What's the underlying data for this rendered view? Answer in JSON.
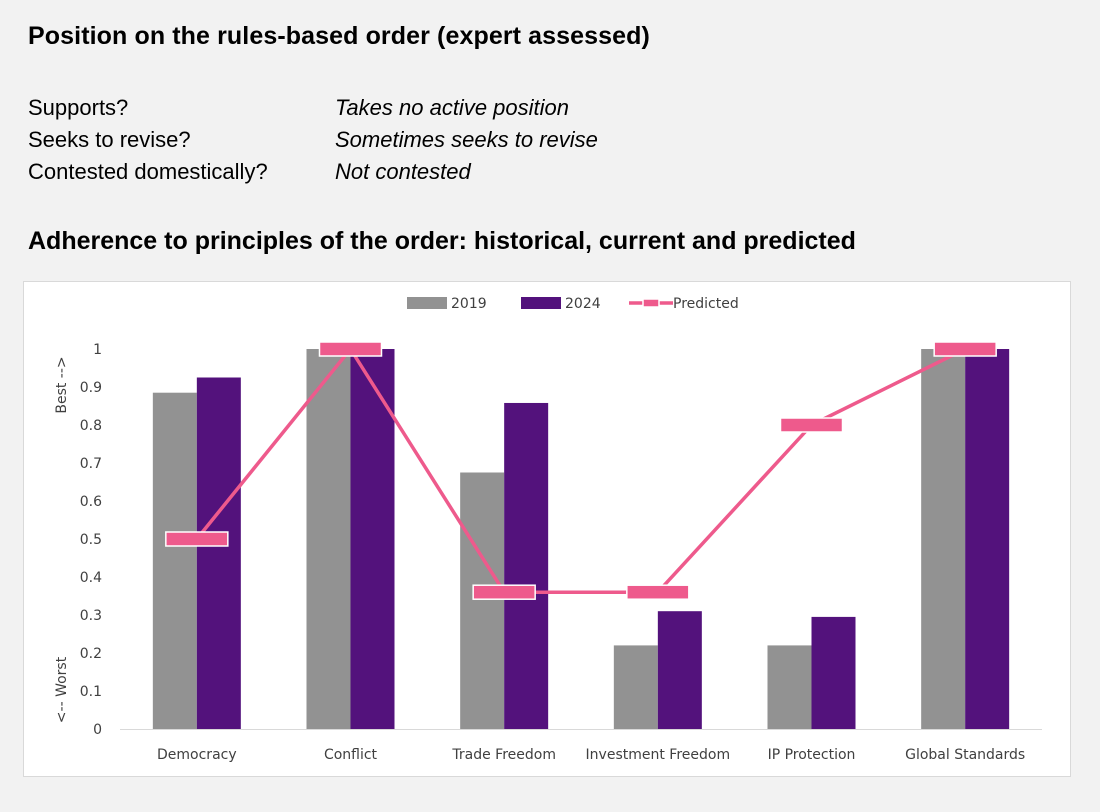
{
  "heading_position": "Position on the rules-based order (expert assessed)",
  "position": [
    {
      "label": "Supports?",
      "value": "Takes no active position"
    },
    {
      "label": "Seeks to revise?",
      "value": "Sometimes seeks to revise"
    },
    {
      "label": "Contested domestically?",
      "value": "Not contested"
    }
  ],
  "heading_adherence": "Adherence to principles of the order: historical, current and predicted",
  "colors": {
    "s2019": "#929292",
    "s2024": "#53127c",
    "predicted": "#ee5a8c"
  },
  "chart_data": {
    "type": "bar",
    "categories": [
      "Democracy",
      "Conflict",
      "Trade Freedom",
      "Investment Freedom",
      "IP Protection",
      "Global Standards"
    ],
    "series": [
      {
        "name": "2019",
        "type": "bar",
        "values": [
          0.885,
          1.0,
          0.675,
          0.22,
          0.22,
          1.0
        ]
      },
      {
        "name": "2024",
        "type": "bar",
        "values": [
          0.925,
          1.0,
          0.858,
          0.31,
          0.295,
          1.0
        ]
      },
      {
        "name": "Predicted",
        "type": "line",
        "values": [
          0.5,
          1.0,
          0.36,
          0.36,
          0.8,
          1.0
        ]
      }
    ],
    "ylim": [
      0,
      1
    ],
    "yticks": [
      "0",
      "0.1",
      "0.2",
      "0.3",
      "0.4",
      "0.5",
      "0.6",
      "0.7",
      "0.8",
      "0.9",
      "1"
    ],
    "y_label_top": "Best -->",
    "y_label_bottom": "<-- Worst",
    "legend_position": "top",
    "grid": false
  }
}
